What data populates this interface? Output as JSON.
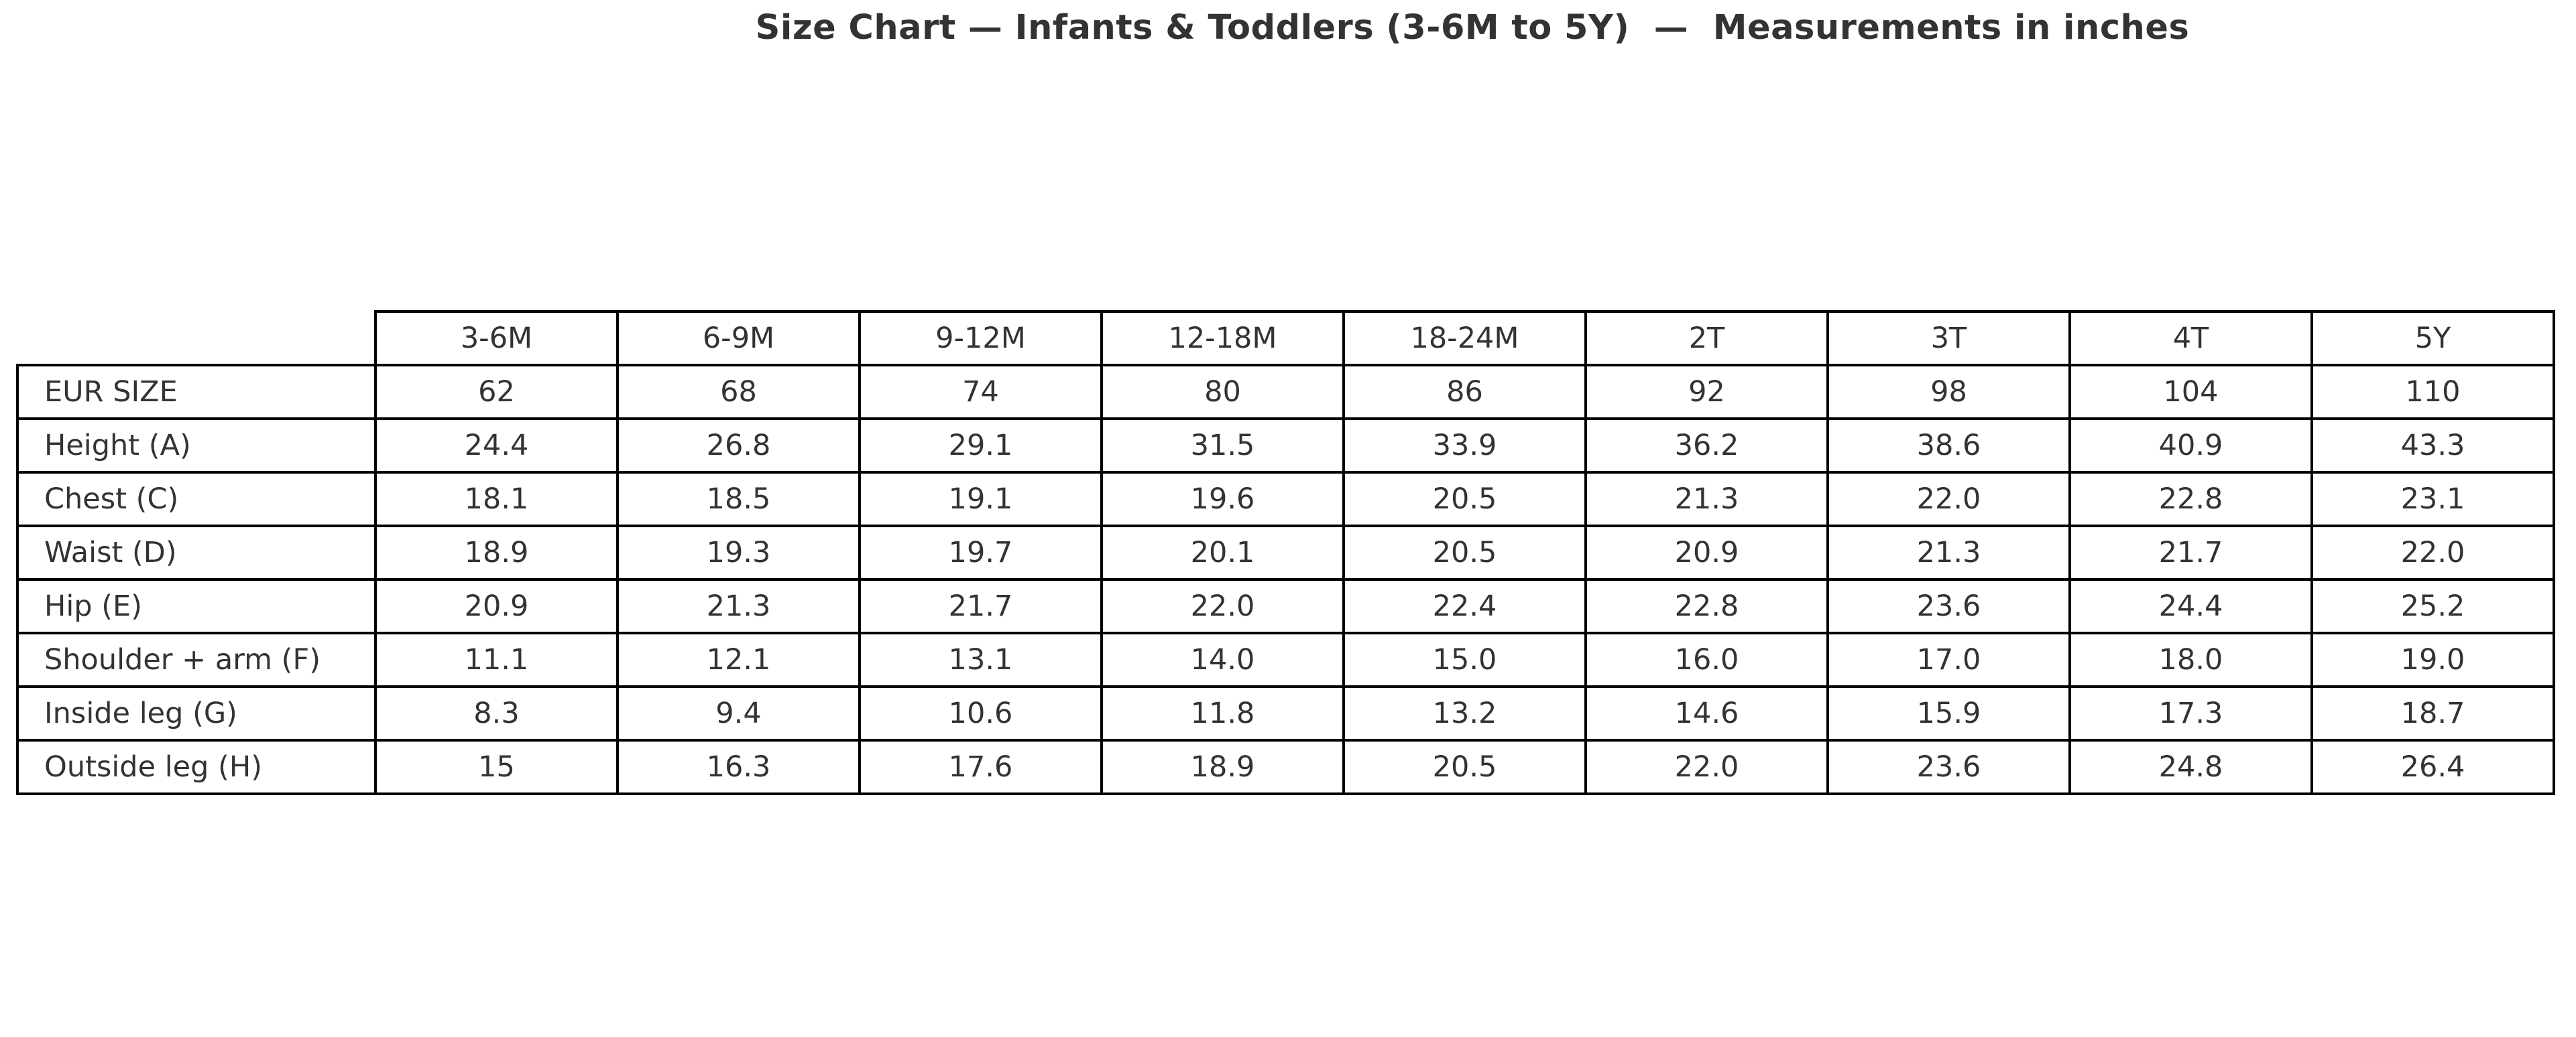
{
  "title": "Size Chart — Infants & Toddlers (3-6M to 5Y)  —  Measurements in inches",
  "colors": {
    "background": "#ffffff",
    "text": "#333333",
    "border": "#000000"
  },
  "chart_data": {
    "type": "table",
    "title": "Size Chart — Infants & Toddlers (3-6M to 5Y)  —  Measurements in inches",
    "units": "inches",
    "columns": [
      "3-6M",
      "6-9M",
      "9-12M",
      "12-18M",
      "18-24M",
      "2T",
      "3T",
      "4T",
      "5Y"
    ],
    "rows": [
      {
        "label": "EUR SIZE",
        "values": [
          "62",
          "68",
          "74",
          "80",
          "86",
          "92",
          "98",
          "104",
          "110"
        ]
      },
      {
        "label": "Height (A)",
        "values": [
          "24.4",
          "26.8",
          "29.1",
          "31.5",
          "33.9",
          "36.2",
          "38.6",
          "40.9",
          "43.3"
        ]
      },
      {
        "label": "Chest (C)",
        "values": [
          "18.1",
          "18.5",
          "19.1",
          "19.6",
          "20.5",
          "21.3",
          "22.0",
          "22.8",
          "23.1"
        ]
      },
      {
        "label": "Waist (D)",
        "values": [
          "18.9",
          "19.3",
          "19.7",
          "20.1",
          "20.5",
          "20.9",
          "21.3",
          "21.7",
          "22.0"
        ]
      },
      {
        "label": "Hip (E)",
        "values": [
          "20.9",
          "21.3",
          "21.7",
          "22.0",
          "22.4",
          "22.8",
          "23.6",
          "24.4",
          "25.2"
        ]
      },
      {
        "label": "Shoulder + arm (F)",
        "values": [
          "11.1",
          "12.1",
          "13.1",
          "14.0",
          "15.0",
          "16.0",
          "17.0",
          "18.0",
          "19.0"
        ]
      },
      {
        "label": "Inside leg (G)",
        "values": [
          "8.3",
          "9.4",
          "10.6",
          "11.8",
          "13.2",
          "14.6",
          "15.9",
          "17.3",
          "18.7"
        ]
      },
      {
        "label": "Outside leg (H)",
        "values": [
          "15",
          "16.3",
          "17.6",
          "18.9",
          "20.5",
          "22.0",
          "23.6",
          "24.8",
          "26.4"
        ]
      }
    ]
  }
}
